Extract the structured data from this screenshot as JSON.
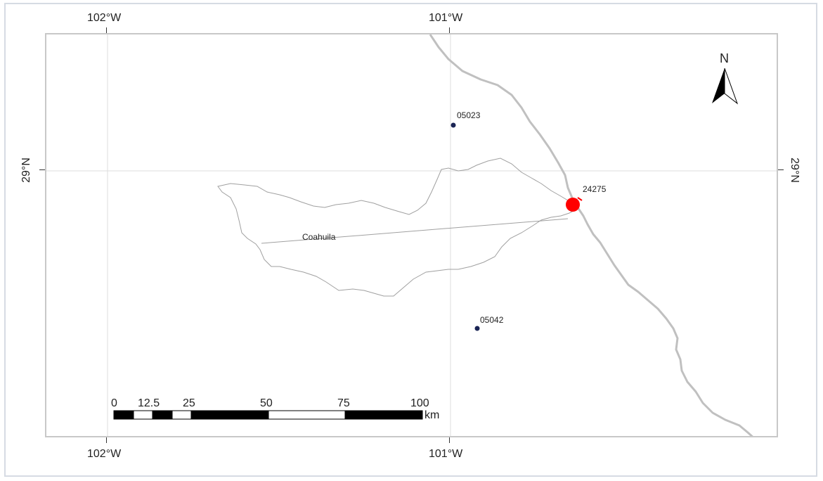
{
  "graticule": {
    "lon_top": [
      "102°W",
      "101°W"
    ],
    "lon_bottom": [
      "102°W",
      "101°W"
    ],
    "lat_left": "29°N",
    "lat_right": "29°N"
  },
  "north_arrow": {
    "label": "N"
  },
  "stations": [
    {
      "id": "05023",
      "type": "small-point"
    },
    {
      "id": "05042",
      "type": "small-point"
    },
    {
      "id": "24275",
      "type": "large-point",
      "color": "#ff0000"
    }
  ],
  "basin": {
    "label": "Coahuila"
  },
  "scale_bar": {
    "ticks": [
      "0",
      "12.5",
      "25",
      "50",
      "75",
      "100"
    ],
    "unit": "km"
  },
  "colors": {
    "river": "#c0c0c0",
    "basin_outline": "#a0a0a0",
    "gridline": "#dddddd",
    "station_small": "#1a2455",
    "station_large": "#ff0000"
  }
}
